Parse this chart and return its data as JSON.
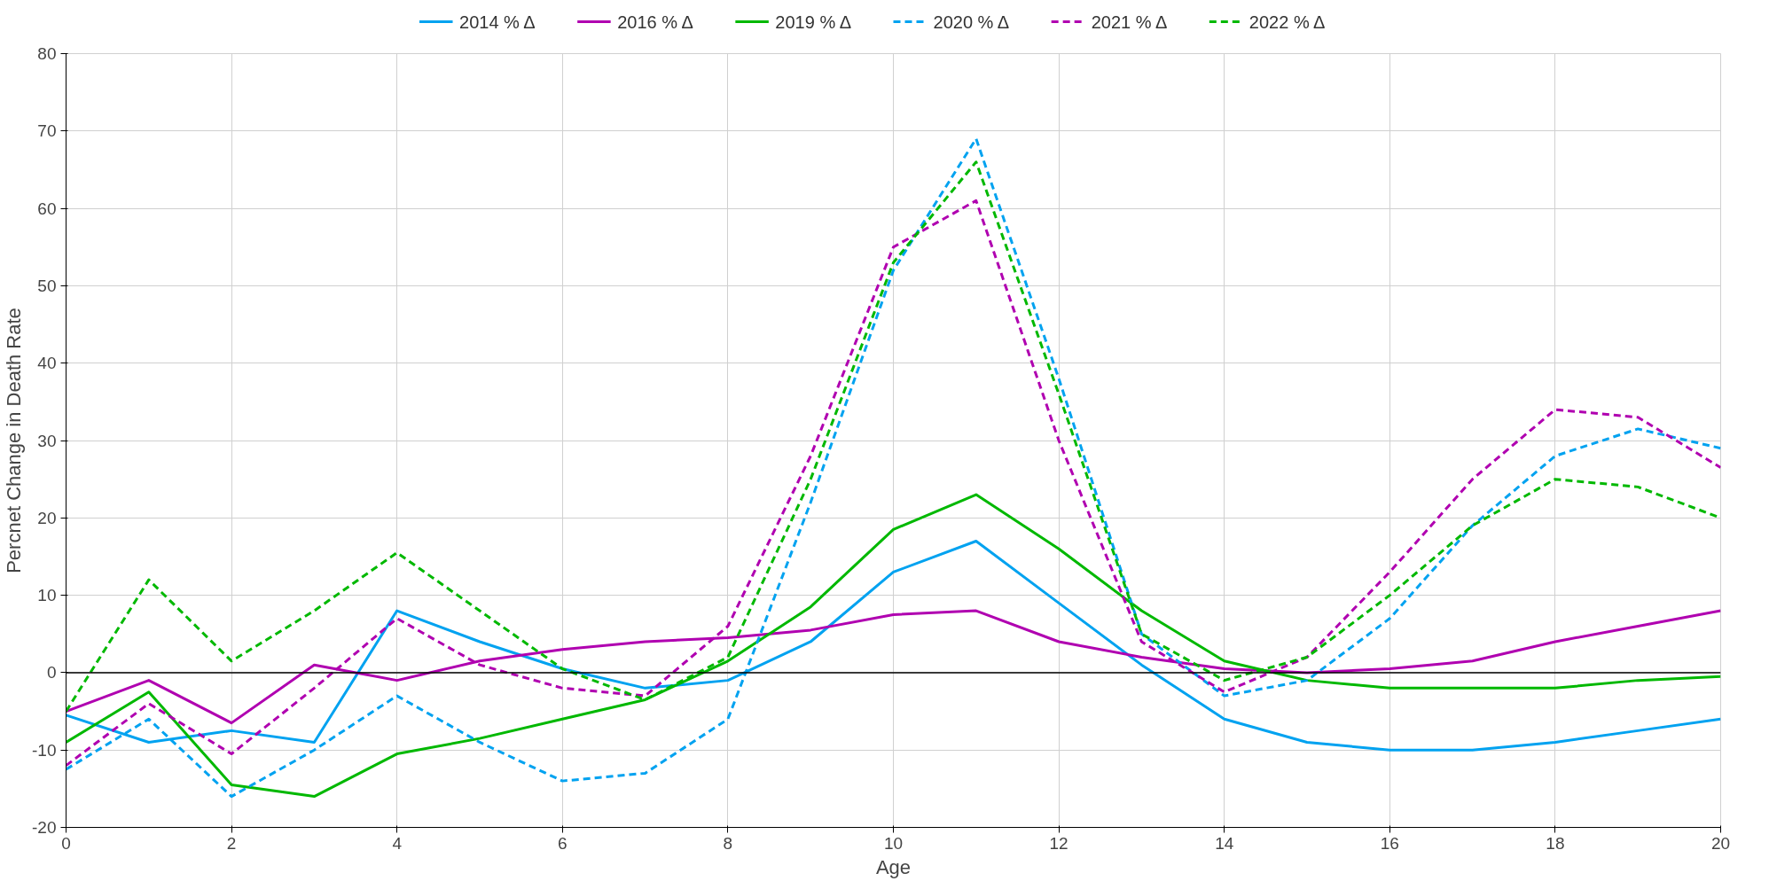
{
  "chart_data": {
    "type": "line",
    "xlabel": "Age",
    "ylabel": "Percnet Change in Death Rate",
    "x": [
      0,
      1,
      2,
      3,
      4,
      5,
      6,
      7,
      8,
      9,
      10,
      11,
      12,
      13,
      14,
      15,
      16,
      17,
      18,
      19,
      20
    ],
    "series": [
      {
        "name": "2014 % Δ",
        "color": "#00a2f0",
        "line_style": "solid",
        "values": [
          -5.5,
          -9,
          -7.5,
          -9,
          8,
          4,
          0.5,
          -2,
          -1,
          4,
          13,
          17,
          9,
          1,
          -6,
          -9,
          -10,
          -10,
          -9,
          -7.5,
          -6
        ]
      },
      {
        "name": "2016 % Δ",
        "color": "#b000b0",
        "line_style": "solid",
        "values": [
          -5,
          -1,
          -6.5,
          1,
          -1,
          1.5,
          3,
          4,
          4.5,
          5.5,
          7.5,
          8,
          4,
          2,
          0.5,
          0,
          0.5,
          1.5,
          4,
          6,
          8
        ]
      },
      {
        "name": "2019 % Δ",
        "color": "#00b800",
        "line_style": "solid",
        "values": [
          -9,
          -2.5,
          -14.5,
          -16,
          -10.5,
          -8.5,
          -6,
          -3.5,
          1.5,
          8.5,
          18.5,
          23,
          16,
          8,
          1.5,
          -1,
          -2,
          -2,
          -2,
          -1,
          -0.5
        ]
      },
      {
        "name": "2020 % Δ",
        "color": "#00a2f0",
        "line_style": "dashed",
        "values": [
          -12.5,
          -6,
          -16,
          -10,
          -3,
          -9,
          -14,
          -13,
          -6,
          22,
          52,
          69,
          38,
          5,
          -3,
          -1,
          7,
          19,
          28,
          31.5,
          29
        ]
      },
      {
        "name": "2021 % Δ",
        "color": "#b000b0",
        "line_style": "dashed",
        "values": [
          -12,
          -4,
          -10.5,
          -2,
          7,
          1,
          -2,
          -3,
          6,
          28,
          55,
          61,
          30,
          4,
          -2.5,
          2,
          13,
          25,
          34,
          33,
          26.5
        ]
      },
      {
        "name": "2022 % Δ",
        "color": "#00b800",
        "line_style": "dashed",
        "values": [
          -5,
          12,
          1.5,
          8,
          15.5,
          8,
          0.5,
          -3.5,
          2,
          25,
          53,
          66,
          36,
          5,
          -1,
          2,
          10,
          19,
          25,
          24,
          20
        ]
      }
    ],
    "xlim": [
      0,
      20
    ],
    "xticks": [
      0,
      2,
      4,
      6,
      8,
      10,
      12,
      14,
      16,
      18,
      20
    ],
    "ylim": [
      -20,
      80
    ],
    "yticks": [
      -20,
      -10,
      0,
      10,
      20,
      30,
      40,
      50,
      60,
      70,
      80
    ],
    "ref_lines": [
      {
        "axis": "y",
        "value": 0,
        "color": "#000000"
      }
    ],
    "grid": true,
    "legend": "top"
  }
}
